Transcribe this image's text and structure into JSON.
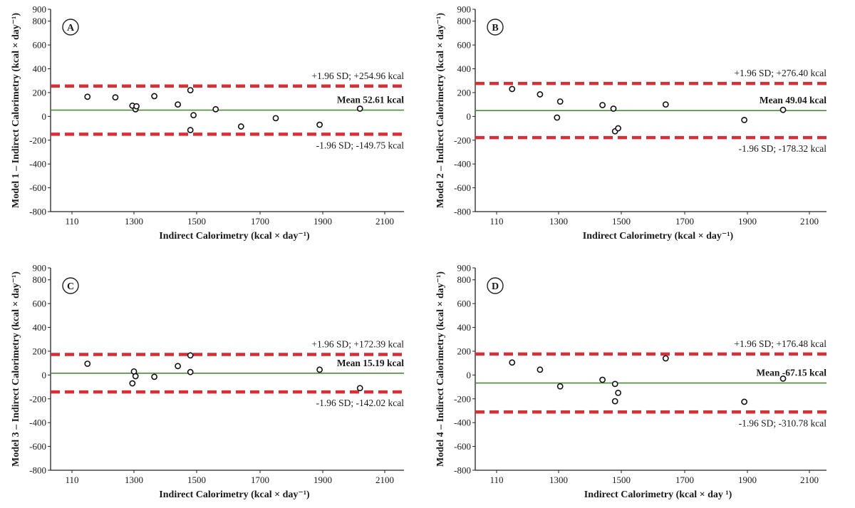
{
  "chart_data": [
    {
      "type": "scatter",
      "panel_label": "A",
      "xlabel": "Indirect Calorimetry (kcal × day⁻¹)",
      "ylabel": "Model 1 – Indirect Calorimetry (kcal × day⁻¹)",
      "x_ticks": [
        "110",
        "1300",
        "1500",
        "1700",
        "1900",
        "2100"
      ],
      "y_ticks": [
        900,
        800,
        600,
        400,
        200,
        0,
        -200,
        -400,
        -600,
        -800
      ],
      "ylim": [
        -800,
        900
      ],
      "mean": 52.61,
      "upper": 254.96,
      "lower": -149.75,
      "mean_label": "Mean 52.61 kcal",
      "upper_label": "+1.96 SD;  +254.96 kcal",
      "lower_label": "-1.96 SD;  -149.75 kcal",
      "points": [
        [
          1150,
          165
        ],
        [
          1240,
          160
        ],
        [
          1295,
          90
        ],
        [
          1305,
          60
        ],
        [
          1308,
          85
        ],
        [
          1365,
          170
        ],
        [
          1440,
          100
        ],
        [
          1480,
          220
        ],
        [
          1480,
          -115
        ],
        [
          1490,
          10
        ],
        [
          1560,
          60
        ],
        [
          1640,
          -85
        ],
        [
          1750,
          -15
        ],
        [
          1890,
          -70
        ],
        [
          2020,
          65
        ]
      ]
    },
    {
      "type": "scatter",
      "panel_label": "B",
      "xlabel": "Indirect Calorimetry (kcal × day⁻¹)",
      "ylabel": "Model 2 – Indirect Calorimetry (kcal × day⁻¹)",
      "x_ticks": [
        "110",
        "1300",
        "1500",
        "1700",
        "1900",
        "2100"
      ],
      "y_ticks": [
        900,
        800,
        600,
        400,
        200,
        0,
        -200,
        -400,
        -600,
        -800
      ],
      "ylim": [
        -800,
        900
      ],
      "mean": 49.04,
      "upper": 276.4,
      "lower": -178.32,
      "mean_label": "Mean 49.04 kcal",
      "upper_label": "+1.96 SD;  +276.40 kcal",
      "lower_label": "-1.96 SD;  -178.32 kcal",
      "points": [
        [
          1150,
          230
        ],
        [
          1240,
          185
        ],
        [
          1295,
          -10
        ],
        [
          1305,
          125
        ],
        [
          1440,
          95
        ],
        [
          1475,
          65
        ],
        [
          1480,
          -125
        ],
        [
          1490,
          -100
        ],
        [
          1640,
          100
        ],
        [
          1890,
          -30
        ],
        [
          2015,
          55
        ]
      ]
    },
    {
      "type": "scatter",
      "panel_label": "C",
      "xlabel": "Indirect Calorimetry (kcal × day⁻¹)",
      "ylabel": "Model 3 – Indirect Calorimetry (kcal × day⁻¹)",
      "x_ticks": [
        "110",
        "1300",
        "1500",
        "1700",
        "1900",
        "2100"
      ],
      "y_ticks": [
        900,
        800,
        600,
        400,
        200,
        0,
        -200,
        -400,
        -600,
        -800
      ],
      "ylim": [
        -800,
        900
      ],
      "mean": 15.19,
      "upper": 172.39,
      "lower": -142.02,
      "mean_label": "Mean 15.19 kcal",
      "upper_label": "+1.96 SD;  +172.39 kcal",
      "lower_label": "-1.96 SD;  -142.02 kcal",
      "points": [
        [
          1150,
          95
        ],
        [
          1295,
          -70
        ],
        [
          1300,
          30
        ],
        [
          1305,
          -10
        ],
        [
          1365,
          -15
        ],
        [
          1440,
          75
        ],
        [
          1480,
          165
        ],
        [
          1480,
          25
        ],
        [
          1890,
          45
        ],
        [
          2020,
          -110
        ]
      ]
    },
    {
      "type": "scatter",
      "panel_label": "D",
      "xlabel": "Indirect Calorimetry (kcal × day ¹)",
      "ylabel": "Model 4 – Indirect Calorimetry (kcal × day⁻¹)",
      "x_ticks": [
        "110",
        "1300",
        "1500",
        "1700",
        "1900",
        "2100"
      ],
      "y_ticks": [
        900,
        800,
        600,
        400,
        200,
        0,
        -200,
        -400,
        -600,
        -800
      ],
      "ylim": [
        -800,
        900
      ],
      "mean": -67.15,
      "upper": 176.48,
      "lower": -310.78,
      "mean_label": "Mean -67.15 kcal",
      "upper_label": "+1.96 SD;  +176.48 kcal",
      "lower_label": "-1.96 SD;  -310.78 kcal",
      "points": [
        [
          1150,
          105
        ],
        [
          1240,
          45
        ],
        [
          1305,
          -95
        ],
        [
          1440,
          -40
        ],
        [
          1480,
          -75
        ],
        [
          1490,
          -150
        ],
        [
          1480,
          -220
        ],
        [
          1640,
          140
        ],
        [
          1890,
          -225
        ],
        [
          2015,
          -30
        ]
      ]
    }
  ],
  "colors": {
    "limit_line": "#d62f35",
    "mean_line": "#4f8a3a",
    "axis": "#222222",
    "marker_stroke": "#111111"
  }
}
